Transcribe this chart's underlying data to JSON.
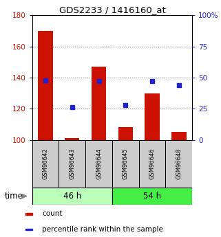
{
  "title": "GDS2233 / 1416160_at",
  "samples": [
    "GSM96642",
    "GSM96643",
    "GSM96644",
    "GSM96645",
    "GSM96646",
    "GSM96648"
  ],
  "counts": [
    170,
    101,
    147,
    108,
    130,
    105
  ],
  "percentiles": [
    48,
    26,
    47,
    28,
    47,
    44
  ],
  "ylim_left": [
    100,
    180
  ],
  "ylim_right": [
    0,
    100
  ],
  "yticks_left": [
    100,
    120,
    140,
    160,
    180
  ],
  "yticks_right": [
    0,
    25,
    50,
    75,
    100
  ],
  "yticklabels_right": [
    "0",
    "25",
    "50",
    "75",
    "100%"
  ],
  "groups": [
    {
      "label": "46 h",
      "indices": [
        0,
        1,
        2
      ],
      "color": "#bbffbb"
    },
    {
      "label": "54 h",
      "indices": [
        3,
        4,
        5
      ],
      "color": "#44ee44"
    }
  ],
  "bar_color": "#cc1100",
  "dot_color": "#2222cc",
  "bar_width": 0.55,
  "grid_color": "#888888",
  "sample_box_color": "#cccccc",
  "legend_items": [
    {
      "label": "count",
      "color": "#cc1100"
    },
    {
      "label": "percentile rank within the sample",
      "color": "#2222cc"
    }
  ],
  "fig_width": 3.21,
  "fig_height": 3.45,
  "dpi": 100
}
